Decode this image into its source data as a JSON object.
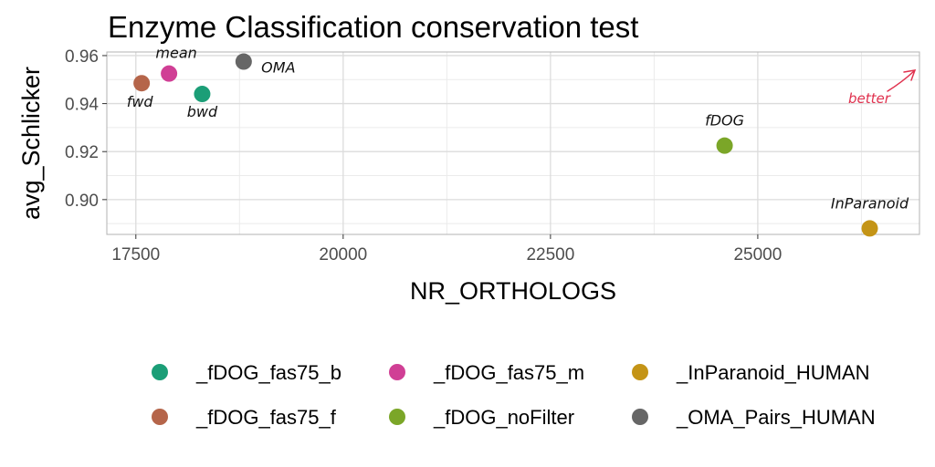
{
  "chart_data": {
    "type": "scatter",
    "title": "Enzyme Classification conservation test",
    "xlabel": "NR_ORTHOLOGS",
    "ylabel": "avg_Schlicker",
    "xlim": [
      17150,
      26950
    ],
    "ylim": [
      0.8855,
      0.9615
    ],
    "x_ticks": [
      17500,
      20000,
      22500,
      25000
    ],
    "x_tick_labels": [
      "17500",
      "20000",
      "22500",
      "25000"
    ],
    "y_ticks": [
      0.9,
      0.92,
      0.94,
      0.96
    ],
    "y_tick_labels": [
      "0.90",
      "0.92",
      "0.94",
      "0.96"
    ],
    "grid": true,
    "legend_position": "bottom",
    "series": [
      {
        "name": "_fDOG_fas75_b",
        "color": "#1b9e77",
        "x": 18300,
        "y": 0.944,
        "annotation": "bwd"
      },
      {
        "name": "_fDOG_fas75_m",
        "color": "#d03f95",
        "x": 17900,
        "y": 0.9525,
        "annotation": "mean"
      },
      {
        "name": "_InParanoid_HUMAN",
        "color": "#c49416",
        "x": 26350,
        "y": 0.888,
        "annotation": "InParanoid"
      },
      {
        "name": "_fDOG_fas75_f",
        "color": "#b5654a",
        "x": 17570,
        "y": 0.9485,
        "annotation": "fwd"
      },
      {
        "name": "_fDOG_noFilter",
        "color": "#7ba628",
        "x": 24600,
        "y": 0.9225,
        "annotation": "fDOG"
      },
      {
        "name": "_OMA_Pairs_HUMAN",
        "color": "#666666",
        "x": 18800,
        "y": 0.9575,
        "annotation": "OMA"
      }
    ],
    "corner_annotation": "better"
  }
}
